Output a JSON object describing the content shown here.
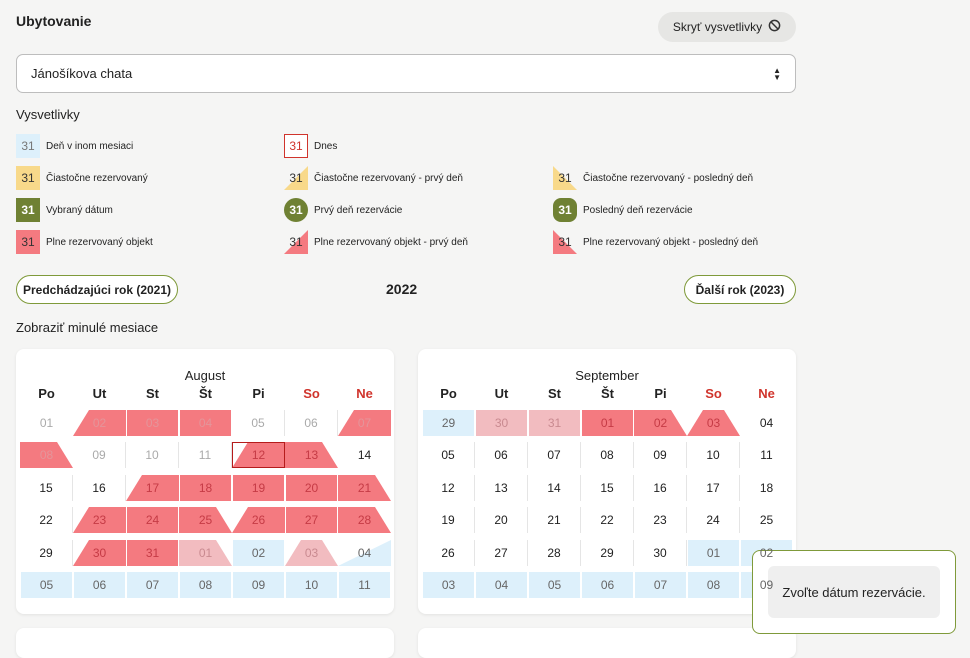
{
  "page": {
    "title": "Ubytovanie",
    "hide_legend_label": "Skryť vysvetlivky",
    "accommodation_select": "Jánošíkova chata",
    "legend_title": "Vysvetlivky",
    "legend": [
      {
        "label": "Deň v inom mesiaci",
        "num": "31",
        "kind": "other"
      },
      {
        "label": "Dnes",
        "num": "31",
        "kind": "today"
      },
      {
        "label": "Čiastočne rezervovaný",
        "num": "31",
        "kind": "partial"
      },
      {
        "label": "Čiastočne rezervovaný - prvý deň",
        "num": "31",
        "kind": "partial-first"
      },
      {
        "label": "Čiastočne rezervovaný - posledný deň",
        "num": "31",
        "kind": "partial-last"
      },
      {
        "label": "Vybraný dátum",
        "num": "31",
        "kind": "selected"
      },
      {
        "label": "Prvý deň rezervácie",
        "num": "31",
        "kind": "first-res"
      },
      {
        "label": "Posledný deň rezervácie",
        "num": "31",
        "kind": "last-res"
      },
      {
        "label": "Plne rezervovaný objekt",
        "num": "31",
        "kind": "full"
      },
      {
        "label": "Plne rezervovaný objekt - prvý deň",
        "num": "31",
        "kind": "full-first"
      },
      {
        "label": "Plne rezervovaný objekt - posledný deň",
        "num": "31",
        "kind": "full-last"
      }
    ],
    "prev_year_label": "Predchádzajúci rok (2021)",
    "year": "2022",
    "next_year_label": "Ďalší rok (2023)",
    "show_past_label": "Zobraziť minulé mesiace",
    "weekdays": [
      "Po",
      "Ut",
      "St",
      "Št",
      "Pi",
      "So",
      "Ne"
    ],
    "toast": "Zvoľte dátum rezervácie.",
    "colors": {
      "accent": "#7f9a3a",
      "full": "#f47a80",
      "partial": "#f8d98a",
      "selected": "#6f8133",
      "other_month": "#ddf0fb",
      "today": "#d0342c"
    }
  },
  "months": [
    {
      "name": "August",
      "rows": [
        [
          {
            "d": "01",
            "s": "other"
          },
          {
            "d": "02",
            "s": "full-start-other"
          },
          {
            "d": "03",
            "s": "full-other"
          },
          {
            "d": "04",
            "s": "full-other"
          },
          {
            "d": "05",
            "s": "other-plain"
          },
          {
            "d": "06",
            "s": "other-plain"
          },
          {
            "d": "07",
            "s": "full-start-other"
          }
        ],
        [
          {
            "d": "08",
            "s": "full-end-other"
          },
          {
            "d": "09",
            "s": "other-plain"
          },
          {
            "d": "10",
            "s": "other-plain"
          },
          {
            "d": "11",
            "s": "other-plain"
          },
          {
            "d": "12",
            "s": "full-start-today"
          },
          {
            "d": "13",
            "s": "full-end"
          },
          {
            "d": "14",
            "s": "plain"
          }
        ],
        [
          {
            "d": "15",
            "s": "plain"
          },
          {
            "d": "16",
            "s": "plain"
          },
          {
            "d": "17",
            "s": "full-start"
          },
          {
            "d": "18",
            "s": "full"
          },
          {
            "d": "19",
            "s": "full"
          },
          {
            "d": "20",
            "s": "full"
          },
          {
            "d": "21",
            "s": "full-end"
          }
        ],
        [
          {
            "d": "22",
            "s": "plain"
          },
          {
            "d": "23",
            "s": "full-start"
          },
          {
            "d": "24",
            "s": "full"
          },
          {
            "d": "25",
            "s": "full-end"
          },
          {
            "d": "26",
            "s": "full-start"
          },
          {
            "d": "27",
            "s": "full"
          },
          {
            "d": "28",
            "s": "full-end"
          }
        ],
        [
          {
            "d": "29",
            "s": "plain"
          },
          {
            "d": "30",
            "s": "full-start"
          },
          {
            "d": "31",
            "s": "full"
          },
          {
            "d": "01",
            "s": "pastfull-end"
          },
          {
            "d": "02",
            "s": "light"
          },
          {
            "d": "03",
            "s": "pastfull-both"
          },
          {
            "d": "04",
            "s": "light-end"
          }
        ],
        [
          {
            "d": "05",
            "s": "light"
          },
          {
            "d": "06",
            "s": "light"
          },
          {
            "d": "07",
            "s": "light"
          },
          {
            "d": "08",
            "s": "light"
          },
          {
            "d": "09",
            "s": "light"
          },
          {
            "d": "10",
            "s": "light"
          },
          {
            "d": "11",
            "s": "light"
          }
        ]
      ]
    },
    {
      "name": "September",
      "rows": [
        [
          {
            "d": "29",
            "s": "light"
          },
          {
            "d": "30",
            "s": "pastfull"
          },
          {
            "d": "31",
            "s": "pastfull"
          },
          {
            "d": "01",
            "s": "full"
          },
          {
            "d": "02",
            "s": "full-end-plain"
          },
          {
            "d": "03",
            "s": "full-both"
          },
          {
            "d": "04",
            "s": "plain"
          }
        ],
        [
          {
            "d": "05",
            "s": "plain"
          },
          {
            "d": "06",
            "s": "plain"
          },
          {
            "d": "07",
            "s": "plain"
          },
          {
            "d": "08",
            "s": "plain"
          },
          {
            "d": "09",
            "s": "plain"
          },
          {
            "d": "10",
            "s": "plain"
          },
          {
            "d": "11",
            "s": "plain"
          }
        ],
        [
          {
            "d": "12",
            "s": "plain"
          },
          {
            "d": "13",
            "s": "plain"
          },
          {
            "d": "14",
            "s": "plain"
          },
          {
            "d": "15",
            "s": "plain"
          },
          {
            "d": "16",
            "s": "plain"
          },
          {
            "d": "17",
            "s": "plain"
          },
          {
            "d": "18",
            "s": "plain"
          }
        ],
        [
          {
            "d": "19",
            "s": "plain"
          },
          {
            "d": "20",
            "s": "plain"
          },
          {
            "d": "21",
            "s": "plain"
          },
          {
            "d": "22",
            "s": "plain"
          },
          {
            "d": "23",
            "s": "plain"
          },
          {
            "d": "24",
            "s": "plain"
          },
          {
            "d": "25",
            "s": "plain"
          }
        ],
        [
          {
            "d": "26",
            "s": "plain"
          },
          {
            "d": "27",
            "s": "plain"
          },
          {
            "d": "28",
            "s": "plain"
          },
          {
            "d": "29",
            "s": "plain"
          },
          {
            "d": "30",
            "s": "plain"
          },
          {
            "d": "01",
            "s": "light"
          },
          {
            "d": "02",
            "s": "light"
          }
        ],
        [
          {
            "d": "03",
            "s": "light"
          },
          {
            "d": "04",
            "s": "light"
          },
          {
            "d": "05",
            "s": "light"
          },
          {
            "d": "06",
            "s": "light"
          },
          {
            "d": "07",
            "s": "light"
          },
          {
            "d": "08",
            "s": "light"
          },
          {
            "d": "09",
            "s": "light"
          }
        ]
      ]
    }
  ]
}
